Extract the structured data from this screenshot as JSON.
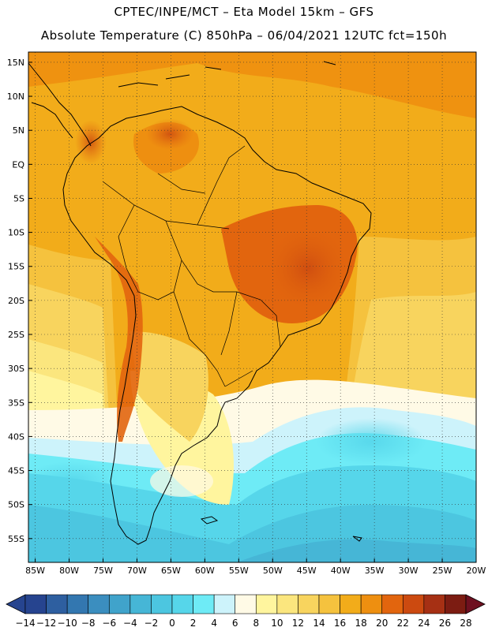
{
  "title": {
    "line1": "CPTEC/INPE/MCT –  Eta Model 15km – GFS",
    "line2": "Absolute Temperature (C) 850hPa – 06/04/2021 12UTC fct=150h"
  },
  "map": {
    "lat_labels": [
      "15N",
      "10N",
      "5N",
      "EQ",
      "5S",
      "10S",
      "15S",
      "20S",
      "25S",
      "30S",
      "35S",
      "40S",
      "45S",
      "50S",
      "55S"
    ],
    "lon_labels": [
      "85W",
      "80W",
      "75W",
      "70W",
      "65W",
      "60W",
      "55W",
      "50W",
      "45W",
      "40W",
      "35W",
      "30W",
      "25W",
      "20W"
    ],
    "lat_range": [
      16.5,
      -58.5
    ],
    "lon_range": [
      -86,
      -20
    ]
  },
  "colorbar": {
    "labels": [
      "-14",
      "-12",
      "-10",
      "-8",
      "-6",
      "-4",
      "-2",
      "0",
      "2",
      "4",
      "6",
      "8",
      "10",
      "12",
      "14",
      "16",
      "18",
      "20",
      "22",
      "24",
      "26",
      "28"
    ],
    "colors": [
      "#26448f",
      "#2e5fa0",
      "#3377b0",
      "#3b8ebf",
      "#40a3cb",
      "#46b6d6",
      "#4cc6e0",
      "#56d6ea",
      "#6eebf6",
      "#cdf3fb",
      "#fffae6",
      "#fff59e",
      "#fbe67e",
      "#f8d45e",
      "#f5c23e",
      "#f2ac1a",
      "#ee8f10",
      "#e2650e",
      "#cc4a10",
      "#a63014",
      "#7c1c12"
    ],
    "low_color": "#26448f",
    "high_color": "#6e1020"
  }
}
